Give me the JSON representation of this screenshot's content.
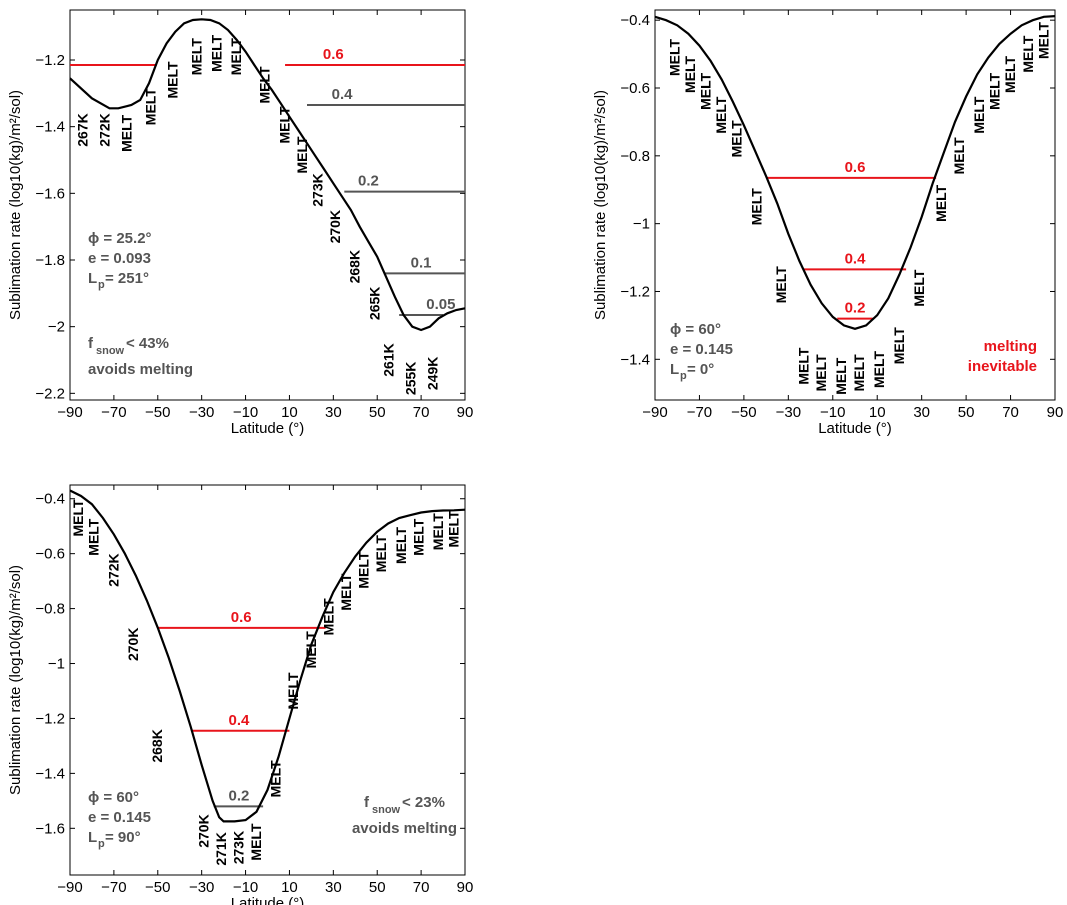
{
  "colors": {
    "red": "#e8141b",
    "gray": "#555555",
    "curve": "#000000"
  },
  "chart_data": [
    {
      "type": "line",
      "xlabel": "Latitude (°)",
      "ylabel": "Sublimation rate (log10(kg)/m²/sol)",
      "xlim": [
        -90,
        90
      ],
      "ylim": [
        -2.22,
        -1.05
      ],
      "xticks": [
        -90,
        -70,
        -50,
        -30,
        -10,
        10,
        30,
        50,
        70,
        90
      ],
      "yticks": [
        -2.2,
        -2,
        -1.8,
        -1.6,
        -1.4,
        -1.2
      ],
      "ytick_labels": [
        "−2.2",
        "−2",
        "−1.8",
        "−1.6",
        "−1.4",
        "−1.2"
      ],
      "xtick_labels": [
        "−90",
        "−70",
        "−50",
        "−30",
        "−10",
        "10",
        "30",
        "50",
        "70",
        "90"
      ],
      "series": [
        {
          "x": [
            -90,
            -80,
            -72,
            -68,
            -62,
            -58,
            -54,
            -50,
            -46,
            -42,
            -38,
            -34,
            -30,
            -26,
            -22,
            -18,
            -14,
            -10,
            -6,
            -2,
            2,
            6,
            10,
            14,
            18,
            22,
            26,
            30,
            34,
            38,
            42,
            46,
            50,
            54,
            58,
            62,
            66,
            70,
            74,
            78,
            82,
            86,
            90
          ],
          "y": [
            -1.255,
            -1.315,
            -1.345,
            -1.345,
            -1.335,
            -1.32,
            -1.27,
            -1.2,
            -1.15,
            -1.115,
            -1.09,
            -1.08,
            -1.078,
            -1.08,
            -1.09,
            -1.11,
            -1.14,
            -1.175,
            -1.215,
            -1.255,
            -1.29,
            -1.33,
            -1.37,
            -1.41,
            -1.45,
            -1.49,
            -1.53,
            -1.57,
            -1.61,
            -1.65,
            -1.7,
            -1.745,
            -1.79,
            -1.85,
            -1.91,
            -1.965,
            -2.0,
            -2.01,
            -2.0,
            -1.975,
            -1.96,
            -1.95,
            -1.945
          ]
        }
      ],
      "thresholds": [
        {
          "label": "0.6",
          "y": -1.215,
          "color": "red",
          "x0": -90,
          "x1": 90,
          "lx": 30,
          "segments": [
            [
              -90,
              -50.5
            ],
            [
              8,
              90
            ]
          ]
        },
        {
          "label": "0.4",
          "y": -1.335,
          "color": "gray",
          "lx": 34,
          "segments": [
            [
              18,
              90
            ]
          ]
        },
        {
          "label": "0.2",
          "y": -1.595,
          "color": "gray",
          "lx": 46,
          "segments": [
            [
              35,
              90
            ]
          ]
        },
        {
          "label": "0.1",
          "y": -1.84,
          "color": "gray",
          "lx": 70,
          "segments": [
            [
              53,
              90
            ]
          ]
        },
        {
          "label": "0.05",
          "y": -1.965,
          "color": "gray",
          "lx": 79,
          "segments": [
            [
              60,
              80
            ]
          ]
        }
      ],
      "annotations": [
        {
          "text": "267K",
          "x": -82,
          "y": -1.41
        },
        {
          "text": "272K",
          "x": -72,
          "y": -1.41
        },
        {
          "text": "MELT",
          "x": -62,
          "y": -1.42
        },
        {
          "text": "MELT",
          "x": -51,
          "y": -1.34
        },
        {
          "text": "MELT",
          "x": -41,
          "y": -1.26
        },
        {
          "text": "MELT",
          "x": -30,
          "y": -1.19
        },
        {
          "text": "MELT",
          "x": -21,
          "y": -1.18
        },
        {
          "text": "MELT",
          "x": -12,
          "y": -1.19
        },
        {
          "text": "MELT",
          "x": 1,
          "y": -1.275
        },
        {
          "text": "MELT",
          "x": 10,
          "y": -1.395
        },
        {
          "text": "MELT",
          "x": 18,
          "y": -1.485
        },
        {
          "text": "273K",
          "x": 25,
          "y": -1.59
        },
        {
          "text": "270K",
          "x": 33,
          "y": -1.7
        },
        {
          "text": "268K",
          "x": 42,
          "y": -1.82
        },
        {
          "text": "265K",
          "x": 51,
          "y": -1.93
        },
        {
          "text": "261K",
          "x": 57.5,
          "y": -2.1
        },
        {
          "text": "255K",
          "x": 67.5,
          "y": -2.155
        },
        {
          "text": "249K",
          "x": 77.5,
          "y": -2.14
        }
      ],
      "params": [
        "ϕ = 25.2°",
        "e = 0.093",
        "L",
        "p",
        " = 251°"
      ],
      "note": [
        "f",
        "snow",
        " < 43%",
        "avoids melting"
      ]
    },
    {
      "type": "line",
      "xlabel": "Latitude (°)",
      "ylabel": "Sublimation rate (log10(kg)/m²/sol)",
      "xlim": [
        -90,
        90
      ],
      "ylim": [
        -1.52,
        -0.37
      ],
      "xticks": [
        -90,
        -70,
        -50,
        -30,
        -10,
        10,
        30,
        50,
        70,
        90
      ],
      "yticks": [
        -1.4,
        -1.2,
        -1,
        -0.8,
        -0.6,
        -0.4
      ],
      "ytick_labels": [
        "−1.4",
        "−1.2",
        "−1",
        "−0.8",
        "−0.6",
        "−0.4"
      ],
      "xtick_labels": [
        "−90",
        "−70",
        "−50",
        "−30",
        "−10",
        "10",
        "30",
        "50",
        "70",
        "90"
      ],
      "series": [
        {
          "x": [
            -90,
            -85,
            -80,
            -75,
            -70,
            -65,
            -60,
            -55,
            -50,
            -45,
            -40,
            -35,
            -30,
            -25,
            -20,
            -15,
            -10,
            -5,
            0,
            5,
            10,
            15,
            20,
            25,
            30,
            35,
            40,
            45,
            50,
            55,
            60,
            65,
            70,
            75,
            80,
            85,
            90
          ],
          "y": [
            -0.39,
            -0.4,
            -0.415,
            -0.44,
            -0.475,
            -0.52,
            -0.575,
            -0.64,
            -0.71,
            -0.785,
            -0.86,
            -0.94,
            -1.03,
            -1.11,
            -1.18,
            -1.235,
            -1.275,
            -1.3,
            -1.31,
            -1.3,
            -1.27,
            -1.22,
            -1.15,
            -1.07,
            -0.98,
            -0.88,
            -0.79,
            -0.7,
            -0.625,
            -0.56,
            -0.51,
            -0.47,
            -0.44,
            -0.415,
            -0.4,
            -0.39,
            -0.388
          ]
        }
      ],
      "thresholds": [
        {
          "label": "0.6",
          "y": -0.865,
          "color": "red",
          "lx": 0,
          "segments": [
            [
              -39.5,
              36.5
            ]
          ]
        },
        {
          "label": "0.4",
          "y": -1.135,
          "color": "red",
          "lx": 0,
          "segments": [
            [
              -23,
              23
            ]
          ]
        },
        {
          "label": "0.2",
          "y": -1.28,
          "color": "red",
          "lx": 0,
          "segments": [
            [
              -8,
              8
            ]
          ]
        }
      ],
      "annotations": [
        {
          "text": "MELT",
          "x": -79,
          "y": -0.51
        },
        {
          "text": "MELT",
          "x": -72,
          "y": -0.56
        },
        {
          "text": "MELT",
          "x": -65,
          "y": -0.61
        },
        {
          "text": "MELT",
          "x": -58,
          "y": -0.68
        },
        {
          "text": "MELT",
          "x": -51,
          "y": -0.75
        },
        {
          "text": "MELT",
          "x": -42,
          "y": -0.95
        },
        {
          "text": "MELT",
          "x": -31,
          "y": -1.18
        },
        {
          "text": "MELT",
          "x": -21,
          "y": -1.42
        },
        {
          "text": "MELT",
          "x": -13,
          "y": -1.44
        },
        {
          "text": "MELT",
          "x": -4,
          "y": -1.45
        },
        {
          "text": "MELT",
          "x": 4,
          "y": -1.44
        },
        {
          "text": "MELT",
          "x": 13,
          "y": -1.43
        },
        {
          "text": "MELT",
          "x": 22,
          "y": -1.36
        },
        {
          "text": "MELT",
          "x": 31,
          "y": -1.19
        },
        {
          "text": "MELT",
          "x": 41,
          "y": -0.94
        },
        {
          "text": "MELT",
          "x": 49,
          "y": -0.8
        },
        {
          "text": "MELT",
          "x": 58,
          "y": -0.68
        },
        {
          "text": "MELT",
          "x": 65,
          "y": -0.61
        },
        {
          "text": "MELT",
          "x": 72,
          "y": -0.56
        },
        {
          "text": "MELT",
          "x": 80,
          "y": -0.5
        },
        {
          "text": "MELT",
          "x": 87,
          "y": -0.46
        }
      ],
      "params": [
        "ϕ = 60°",
        "e = 0.145",
        "L",
        "p",
        " = 0°"
      ],
      "note": [
        "melting",
        "inevitable"
      ]
    },
    {
      "type": "line",
      "xlabel": "Latitude (°)",
      "ylabel": "Sublimation rate (log10(kg)/m²/sol)",
      "xlim": [
        -90,
        90
      ],
      "ylim": [
        -1.77,
        -0.35
      ],
      "xticks": [
        -90,
        -70,
        -50,
        -30,
        -10,
        10,
        30,
        50,
        70,
        90
      ],
      "yticks": [
        -1.6,
        -1.4,
        -1.2,
        -1,
        -0.8,
        -0.6,
        -0.4
      ],
      "ytick_labels": [
        "−1.6",
        "−1.4",
        "−1.2",
        "−1",
        "−0.8",
        "−0.6",
        "−0.4"
      ],
      "xtick_labels": [
        "−90",
        "−70",
        "−50",
        "−30",
        "−10",
        "10",
        "30",
        "50",
        "70",
        "90"
      ],
      "series": [
        {
          "x": [
            -90,
            -85,
            -80,
            -75,
            -70,
            -65,
            -60,
            -55,
            -50,
            -45,
            -40,
            -35,
            -30,
            -25,
            -22,
            -20,
            -15,
            -10,
            -5,
            0,
            5,
            10,
            15,
            20,
            25,
            30,
            35,
            40,
            45,
            50,
            55,
            60,
            65,
            70,
            75,
            80,
            85,
            90
          ],
          "y": [
            -0.37,
            -0.39,
            -0.42,
            -0.47,
            -0.53,
            -0.6,
            -0.68,
            -0.77,
            -0.87,
            -0.98,
            -1.1,
            -1.23,
            -1.37,
            -1.5,
            -1.56,
            -1.575,
            -1.575,
            -1.57,
            -1.54,
            -1.46,
            -1.34,
            -1.2,
            -1.06,
            -0.93,
            -0.83,
            -0.74,
            -0.67,
            -0.61,
            -0.56,
            -0.52,
            -0.49,
            -0.47,
            -0.46,
            -0.45,
            -0.445,
            -0.443,
            -0.442,
            -0.44
          ]
        }
      ],
      "thresholds": [
        {
          "label": "0.6",
          "y": -0.87,
          "color": "red",
          "lx": -12,
          "segments": [
            [
              -50,
              26.5
            ]
          ]
        },
        {
          "label": "0.4",
          "y": -1.245,
          "color": "red",
          "lx": -13,
          "segments": [
            [
              -34.5,
              10
            ]
          ]
        },
        {
          "label": "0.2",
          "y": -1.52,
          "color": "gray",
          "lx": -13,
          "segments": [
            [
              -24.5,
              -2
            ]
          ]
        }
      ],
      "annotations": [
        {
          "text": "MELT",
          "x": -84,
          "y": -0.47
        },
        {
          "text": "MELT",
          "x": -77,
          "y": -0.54
        },
        {
          "text": "272K",
          "x": -68,
          "y": -0.66
        },
        {
          "text": "270K",
          "x": -59,
          "y": -0.93
        },
        {
          "text": "268K",
          "x": -48,
          "y": -1.3
        },
        {
          "text": "270K",
          "x": -27,
          "y": -1.61
        },
        {
          "text": "271K",
          "x": -19,
          "y": -1.675
        },
        {
          "text": "273K",
          "x": -11,
          "y": -1.67
        },
        {
          "text": "MELT",
          "x": -3,
          "y": -1.65
        },
        {
          "text": "MELT",
          "x": 6,
          "y": -1.42
        },
        {
          "text": "MELT",
          "x": 14,
          "y": -1.1
        },
        {
          "text": "MELT",
          "x": 22,
          "y": -0.95
        },
        {
          "text": "MELT",
          "x": 30,
          "y": -0.83
        },
        {
          "text": "MELT",
          "x": 38,
          "y": -0.74
        },
        {
          "text": "MELT",
          "x": 46,
          "y": -0.66
        },
        {
          "text": "MELT",
          "x": 54,
          "y": -0.6
        },
        {
          "text": "MELT",
          "x": 63,
          "y": -0.57
        },
        {
          "text": "MELT",
          "x": 71,
          "y": -0.54
        },
        {
          "text": "MELT",
          "x": 80,
          "y": -0.52
        },
        {
          "text": "MELT",
          "x": 87,
          "y": -0.51
        }
      ],
      "params": [
        "ϕ = 60°",
        "e = 0.145",
        "L",
        "p",
        " = 90°"
      ],
      "note": [
        "f",
        "snow",
        " < 23%",
        "avoids melting"
      ]
    }
  ]
}
